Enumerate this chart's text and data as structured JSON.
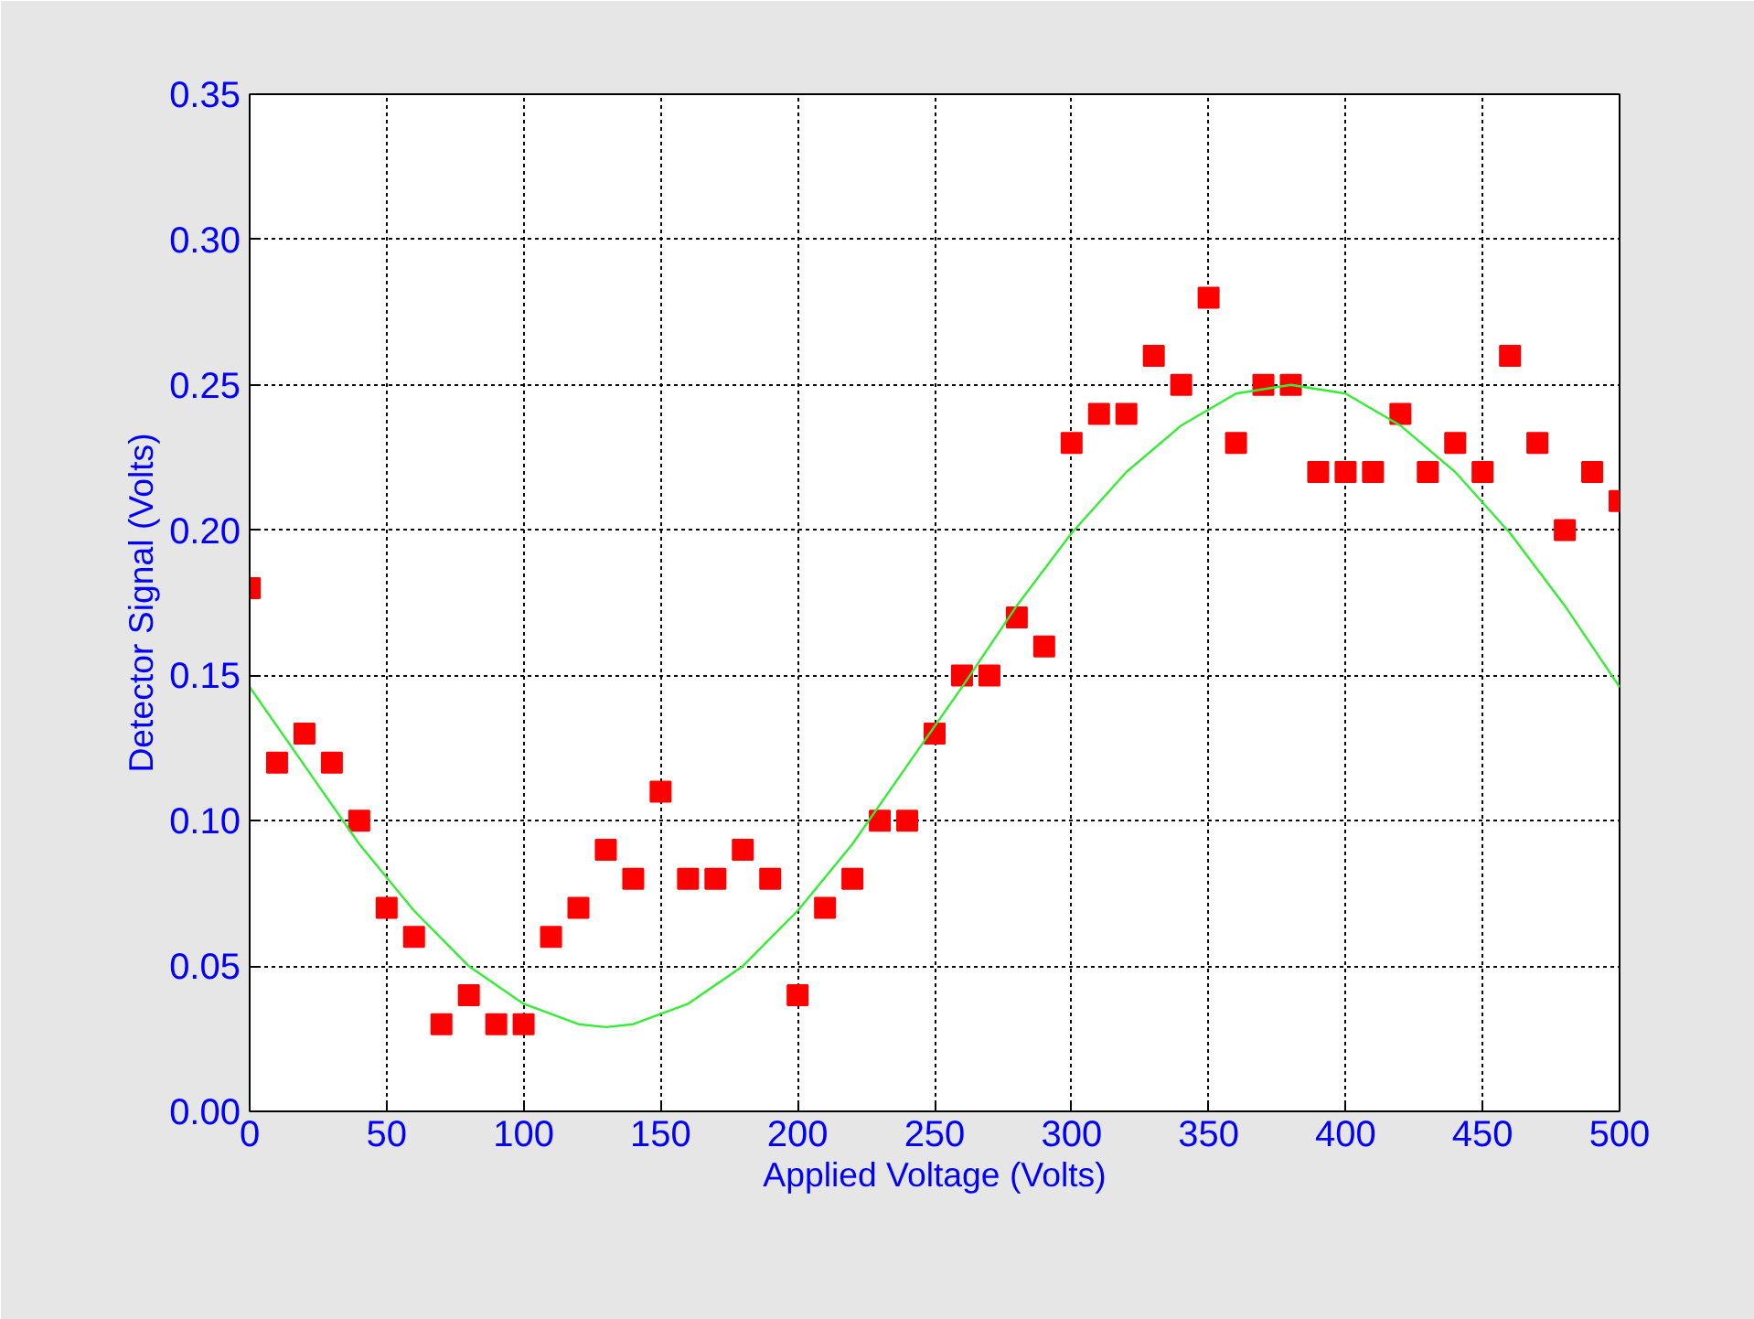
{
  "chart_data": {
    "type": "scatter",
    "xlabel": "Applied Voltage (Volts)",
    "ylabel": "Detector Signal (Volts)",
    "xlim": [
      0,
      500
    ],
    "ylim": [
      0,
      0.35
    ],
    "xticks": [
      0,
      50,
      100,
      150,
      200,
      250,
      300,
      350,
      400,
      450,
      500
    ],
    "yticks": [
      {
        "value": 0,
        "label": "0.00"
      },
      {
        "value": 0.05,
        "label": "0.05"
      },
      {
        "value": 0.1,
        "label": "0.10"
      },
      {
        "value": 0.15,
        "label": "0.15"
      },
      {
        "value": 0.2,
        "label": "0.20"
      },
      {
        "value": 0.25,
        "label": "0.25"
      },
      {
        "value": 0.3,
        "label": "0.30"
      },
      {
        "value": 0.35,
        "label": "0.35"
      }
    ],
    "grid": true,
    "series": [
      {
        "marker": "square",
        "color": "#ff0000",
        "x": [
          0,
          10,
          20,
          30,
          40,
          50,
          60,
          70,
          80,
          90,
          100,
          110,
          120,
          130,
          140,
          150,
          160,
          170,
          180,
          190,
          200,
          210,
          220,
          230,
          240,
          250,
          260,
          270,
          280,
          290,
          300,
          310,
          320,
          330,
          340,
          350,
          360,
          370,
          380,
          390,
          400,
          410,
          420,
          430,
          440,
          450,
          460,
          470,
          480,
          490,
          500
        ],
        "values": [
          0.18,
          0.12,
          0.13,
          0.12,
          0.1,
          0.07,
          0.06,
          0.03,
          0.04,
          0.03,
          0.03,
          0.06,
          0.07,
          0.09,
          0.08,
          0.11,
          0.08,
          0.08,
          0.09,
          0.08,
          0.04,
          0.07,
          0.08,
          0.1,
          0.1,
          0.13,
          0.15,
          0.15,
          0.17,
          0.16,
          0.23,
          0.24,
          0.24,
          0.26,
          0.25,
          0.28,
          0.23,
          0.25,
          0.25,
          0.22,
          0.22,
          0.22,
          0.24,
          0.22,
          0.23,
          0.22,
          0.26,
          0.23,
          0.2,
          0.22,
          0.21
        ]
      },
      {
        "type": "line",
        "marker": "none",
        "line_style": "solid",
        "color": "#33ee33",
        "x": [
          0,
          20,
          40,
          60,
          80,
          100,
          120,
          130,
          140,
          160,
          180,
          200,
          220,
          240,
          260,
          280,
          300,
          320,
          340,
          360,
          380,
          400,
          420,
          440,
          460,
          480,
          500
        ],
        "values": [
          0.146,
          0.119,
          0.092,
          0.069,
          0.05,
          0.037,
          0.03,
          0.029,
          0.03,
          0.037,
          0.05,
          0.069,
          0.092,
          0.119,
          0.146,
          0.174,
          0.199,
          0.22,
          0.236,
          0.247,
          0.25,
          0.247,
          0.236,
          0.22,
          0.199,
          0.174,
          0.146
        ]
      }
    ]
  }
}
